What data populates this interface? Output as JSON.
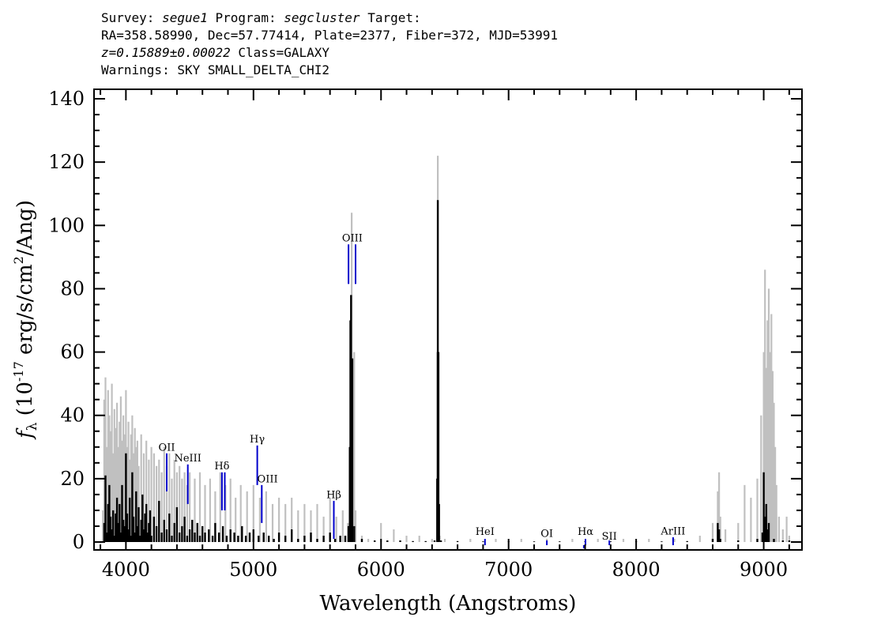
{
  "header": {
    "survey_label": "Survey:",
    "survey": "segue1",
    "program_label": "Program:",
    "program": "segcluster",
    "target_label": "Target:",
    "line2": "RA=358.58990, Dec=57.77414, Plate=2377, Fiber=372, MJD=53991",
    "redshift": "z=0.15889±0.00022",
    "class_text": "Class=GALAXY",
    "warnings": "Warnings: SKY SMALL_DELTA_CHI2"
  },
  "chart_data": {
    "type": "line",
    "xlabel": "Wavelength (Angstroms)",
    "ylabel_parts": {
      "symbol": "f",
      "sub": "λ",
      "pre": " (10",
      "exp": "-17",
      "mid": " erg/s/cm",
      "exp2": "2",
      "post": "/Ang)"
    },
    "xlim": [
      3750,
      9300
    ],
    "ylim": [
      -2.5,
      143
    ],
    "xticks": [
      4000,
      5000,
      6000,
      7000,
      8000,
      9000
    ],
    "yticks": [
      0,
      20,
      40,
      60,
      80,
      100,
      120,
      140
    ],
    "grid": false,
    "colors": {
      "flux": "#000000",
      "error": "#c0c0c0",
      "lines": "#0000cc"
    },
    "series": [
      {
        "role": "flux",
        "x": [
          3830,
          3840,
          3850,
          3860,
          3870,
          3880,
          3890,
          3900,
          3910,
          3920,
          3930,
          3940,
          3950,
          3960,
          3970,
          3980,
          3990,
          4000,
          4010,
          4020,
          4030,
          4040,
          4050,
          4060,
          4070,
          4080,
          4090,
          4100,
          4110,
          4120,
          4130,
          4140,
          4150,
          4160,
          4170,
          4180,
          4190,
          4200,
          4220,
          4240,
          4260,
          4280,
          4300,
          4320,
          4340,
          4360,
          4380,
          4400,
          4420,
          4440,
          4460,
          4480,
          4500,
          4520,
          4540,
          4560,
          4580,
          4600,
          4620,
          4650,
          4680,
          4700,
          4730,
          4760,
          4790,
          4820,
          4850,
          4880,
          4910,
          4940,
          4970,
          5000,
          5040,
          5080,
          5120,
          5160,
          5200,
          5250,
          5300,
          5350,
          5400,
          5450,
          5500,
          5550,
          5600,
          5640,
          5680,
          5720,
          5745,
          5755,
          5760,
          5765,
          5775,
          5790,
          5850,
          5950,
          6050,
          6150,
          6250,
          6350,
          6420,
          6440,
          6445,
          6450,
          6455,
          6470,
          6600,
          6800,
          7000,
          7200,
          7400,
          7600,
          7800,
          8000,
          8200,
          8400,
          8600,
          8640,
          8650,
          8660,
          8800,
          8950,
          8990,
          9000,
          9010,
          9020,
          9030,
          9040,
          9080,
          9150,
          9200
        ],
        "y": [
          6,
          21,
          3,
          12,
          18,
          8,
          4,
          10,
          2,
          9,
          14,
          6,
          12,
          3,
          18,
          7,
          5,
          28,
          9,
          4,
          14,
          2,
          22,
          8,
          3,
          16,
          5,
          11,
          2,
          7,
          15,
          4,
          9,
          12,
          3,
          6,
          10,
          2,
          8,
          5,
          13,
          3,
          7,
          4,
          9,
          2,
          6,
          11,
          3,
          5,
          8,
          2,
          4,
          7,
          3,
          6,
          2,
          5,
          3,
          4,
          2,
          6,
          3,
          5,
          2,
          4,
          3,
          2,
          5,
          2,
          3,
          4,
          2,
          3,
          2,
          1,
          3,
          2,
          4,
          1,
          2,
          3,
          1,
          2,
          3,
          1,
          2,
          2,
          5,
          30,
          70,
          78,
          58,
          5,
          1,
          0.5,
          0.5,
          0.5,
          0.3,
          0.3,
          0.5,
          20,
          108,
          60,
          12,
          0.5,
          0.3,
          0.2,
          0.2,
          0.2,
          0.2,
          0.2,
          0.2,
          0.2,
          0.2,
          0.3,
          1,
          6,
          4,
          1,
          0.5,
          1,
          3,
          22,
          8,
          12,
          4,
          6,
          1,
          0.5,
          0.5
        ]
      },
      {
        "role": "error",
        "x": [
          3820,
          3830,
          3840,
          3850,
          3860,
          3870,
          3880,
          3890,
          3900,
          3910,
          3920,
          3930,
          3940,
          3950,
          3960,
          3970,
          3980,
          3990,
          4000,
          4010,
          4020,
          4030,
          4040,
          4050,
          4060,
          4070,
          4080,
          4090,
          4100,
          4120,
          4140,
          4160,
          4180,
          4200,
          4220,
          4240,
          4260,
          4280,
          4300,
          4320,
          4340,
          4360,
          4380,
          4400,
          4420,
          4440,
          4460,
          4480,
          4500,
          4540,
          4580,
          4620,
          4660,
          4700,
          4740,
          4780,
          4820,
          4860,
          4900,
          4950,
          5000,
          5050,
          5100,
          5150,
          5200,
          5250,
          5300,
          5350,
          5400,
          5450,
          5500,
          5550,
          5600,
          5650,
          5700,
          5740,
          5760,
          5770,
          5790,
          5800,
          5850,
          5900,
          6000,
          6100,
          6200,
          6300,
          6400,
          6440,
          6445,
          6450,
          6460,
          6500,
          6700,
          6900,
          7100,
          7300,
          7500,
          7700,
          7900,
          8100,
          8300,
          8500,
          8600,
          8640,
          8650,
          8660,
          8700,
          8800,
          8850,
          8900,
          8950,
          8980,
          9000,
          9010,
          9020,
          9030,
          9040,
          9050,
          9060,
          9070,
          9080,
          9090,
          9100,
          9120,
          9150,
          9180,
          9200
        ],
        "y": [
          10,
          45,
          52,
          30,
          48,
          40,
          35,
          50,
          28,
          42,
          36,
          44,
          30,
          38,
          46,
          32,
          40,
          34,
          48,
          30,
          38,
          26,
          34,
          40,
          28,
          36,
          30,
          32,
          24,
          34,
          28,
          32,
          26,
          30,
          28,
          24,
          26,
          22,
          30,
          24,
          28,
          20,
          26,
          22,
          24,
          20,
          22,
          18,
          22,
          20,
          22,
          18,
          20,
          16,
          22,
          18,
          20,
          14,
          18,
          16,
          18,
          14,
          16,
          12,
          14,
          12,
          14,
          10,
          12,
          10,
          12,
          8,
          14,
          8,
          10,
          6,
          70,
          104,
          60,
          10,
          2,
          1,
          6,
          4,
          2,
          2,
          1,
          60,
          122,
          50,
          2,
          1,
          1,
          1,
          1,
          1,
          1,
          1,
          1,
          1,
          1,
          2,
          6,
          16,
          22,
          8,
          4,
          6,
          18,
          14,
          20,
          40,
          60,
          86,
          55,
          70,
          80,
          60,
          72,
          54,
          44,
          30,
          18,
          8,
          4,
          8,
          2
        ]
      }
    ],
    "line_markers": [
      {
        "label": "OII",
        "x": 4320,
        "y0": 16,
        "y1": 28
      },
      {
        "label": "NeIII",
        "x": 4485,
        "y0": 12,
        "y1": 24.5
      },
      {
        "label": "Hδ",
        "x": 4753,
        "y0": 10,
        "y1": 22
      },
      {
        "label": "Hδb",
        "x": 4775,
        "y0": 10,
        "y1": 22,
        "unlabeled": true
      },
      {
        "label": "Hγ",
        "x": 5030,
        "y0": 18,
        "y1": 30.5
      },
      {
        "label": "OIII",
        "x": 5065,
        "y0": 6,
        "y1": 18
      },
      {
        "label": "Hβ",
        "x": 5630,
        "y0": 1,
        "y1": 13
      },
      {
        "label": "OIII",
        "x": 5745,
        "y0": 81.5,
        "y1": 94
      },
      {
        "label": "OIII2",
        "x": 5800,
        "y0": 81.5,
        "y1": 94,
        "unlabeled": true
      },
      {
        "label": "HeI",
        "x": 6815,
        "y0": -1,
        "y1": 1
      },
      {
        "label": "OI",
        "x": 7300,
        "y0": -1,
        "y1": 0.5
      },
      {
        "label": "NII",
        "x": 7590,
        "y0": -2,
        "y1": -1,
        "unlabeled": true
      },
      {
        "label": "Hα",
        "x": 7603,
        "y0": -1,
        "y1": 1
      },
      {
        "label": "SII",
        "x": 7790,
        "y0": -1,
        "y1": 0.5
      },
      {
        "label": "ArIII",
        "x": 8290,
        "y0": -1,
        "y1": 1.5
      }
    ],
    "marker_labels": [
      {
        "text": "OII",
        "x": 4320,
        "y": 28.8
      },
      {
        "text": "NeIII",
        "x": 4485,
        "y": 25.4
      },
      {
        "text": "Hδ",
        "x": 4753,
        "y": 22.9
      },
      {
        "text": "Hγ",
        "x": 5030,
        "y": 31.4
      },
      {
        "text": "OIII",
        "x": 5110,
        "y": 18.9
      },
      {
        "text": "Hβ",
        "x": 5630,
        "y": 13.9
      },
      {
        "text": "OIII",
        "x": 5775,
        "y": 94.9
      },
      {
        "text": "HeI",
        "x": 6815,
        "y": 2.2
      },
      {
        "text": "OI",
        "x": 7300,
        "y": 1.6
      },
      {
        "text": "Hα",
        "x": 7603,
        "y": 2.2
      },
      {
        "text": "SII",
        "x": 7790,
        "y": 0.8
      },
      {
        "text": "ArIII",
        "x": 8290,
        "y": 2.4
      }
    ]
  }
}
